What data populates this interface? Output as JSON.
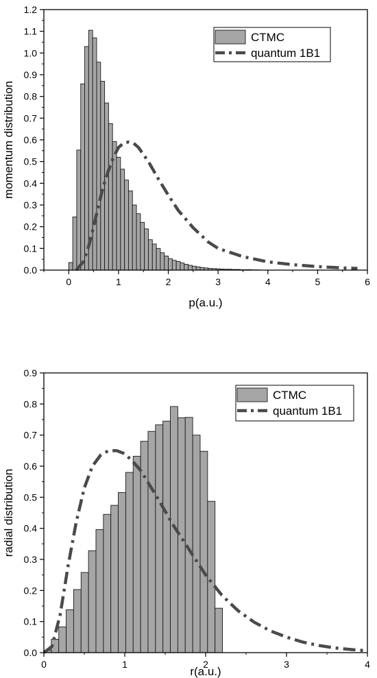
{
  "colors": {
    "bar_fill": "#a6a6a6",
    "bar_stroke": "#1a1a1a",
    "curve": "#4a4a4a",
    "axis": "#000000"
  },
  "chart_data": [
    {
      "type": "bar",
      "xlabel": "p(a.u.)",
      "ylabel": "momentum distribution",
      "xlim": [
        -0.5,
        6
      ],
      "ylim": [
        0,
        1.2
      ],
      "xticks": [
        "0",
        "1",
        "2",
        "3",
        "4",
        "5",
        "6"
      ],
      "yticks": [
        "0.0",
        "0.1",
        "0.2",
        "0.3",
        "0.4",
        "0.5",
        "0.6",
        "0.7",
        "0.8",
        "0.9",
        "1.0",
        "1.1",
        "1.2"
      ],
      "legend_position": "top-right",
      "bar_width": 0.08,
      "series": [
        {
          "name": "CTMC",
          "kind": "histogram",
          "x": [
            0.04,
            0.12,
            0.2,
            0.28,
            0.36,
            0.44,
            0.52,
            0.6,
            0.68,
            0.76,
            0.84,
            0.92,
            1.0,
            1.08,
            1.16,
            1.24,
            1.32,
            1.4,
            1.48,
            1.56,
            1.64,
            1.72,
            1.8,
            1.88,
            1.96,
            2.04,
            2.12,
            2.2,
            2.28,
            2.36,
            2.44,
            2.52,
            2.6,
            2.68,
            2.76,
            2.84,
            2.92,
            3.0,
            3.08,
            3.16,
            3.24,
            3.32,
            3.4,
            3.48,
            3.56,
            3.64,
            3.72,
            3.8
          ],
          "values": [
            0.035,
            0.245,
            0.553,
            0.858,
            1.03,
            1.105,
            1.07,
            0.958,
            0.87,
            0.77,
            0.675,
            0.592,
            0.52,
            0.465,
            0.415,
            0.365,
            0.3,
            0.26,
            0.22,
            0.19,
            0.14,
            0.12,
            0.1,
            0.08,
            0.065,
            0.053,
            0.045,
            0.04,
            0.033,
            0.027,
            0.022,
            0.018,
            0.015,
            0.012,
            0.01,
            0.008,
            0.007,
            0.006,
            0.005,
            0.004,
            0.004,
            0.003,
            0.003,
            0.002,
            0.002,
            0.002,
            0.001,
            0.001
          ]
        },
        {
          "name": "quantum 1B1",
          "kind": "line",
          "style": "dash-dot",
          "x": [
            0.15,
            0.3,
            0.4,
            0.5,
            0.6,
            0.7,
            0.8,
            0.9,
            1.0,
            1.1,
            1.2,
            1.3,
            1.4,
            1.6,
            1.8,
            2.0,
            2.2,
            2.5,
            2.8,
            3.0,
            3.5,
            4.0,
            4.5,
            5.0,
            5.5,
            5.8
          ],
          "values": [
            0.0,
            0.04,
            0.11,
            0.2,
            0.3,
            0.39,
            0.46,
            0.52,
            0.565,
            0.585,
            0.59,
            0.585,
            0.565,
            0.5,
            0.42,
            0.345,
            0.275,
            0.195,
            0.13,
            0.1,
            0.062,
            0.038,
            0.025,
            0.016,
            0.01,
            0.008
          ]
        }
      ]
    },
    {
      "type": "bar",
      "xlabel": "r(a.u.)",
      "ylabel": "radial distribution",
      "xlim": [
        0,
        4
      ],
      "ylim": [
        0,
        0.9
      ],
      "xticks": [
        "0",
        "1",
        "2",
        "3",
        "4"
      ],
      "yticks": [
        "0.0",
        "0.1",
        "0.2",
        "0.3",
        "0.4",
        "0.5",
        "0.6",
        "0.7",
        "0.8",
        "0.9"
      ],
      "legend_position": "top-right",
      "bar_width": 0.092,
      "series": [
        {
          "name": "CTMC",
          "kind": "histogram",
          "x": [
            0.046,
            0.138,
            0.23,
            0.322,
            0.414,
            0.506,
            0.598,
            0.69,
            0.782,
            0.874,
            0.966,
            1.058,
            1.15,
            1.242,
            1.334,
            1.426,
            1.518,
            1.61,
            1.702,
            1.794,
            1.886,
            1.978,
            2.07,
            2.162
          ],
          "values": [
            0.008,
            0.043,
            0.083,
            0.138,
            0.203,
            0.258,
            0.328,
            0.396,
            0.445,
            0.474,
            0.515,
            0.58,
            0.632,
            0.68,
            0.712,
            0.733,
            0.745,
            0.792,
            0.756,
            0.757,
            0.7,
            0.648,
            0.487,
            0.143
          ]
        },
        {
          "name": "quantum 1B1",
          "kind": "line",
          "style": "dash-dot",
          "x": [
            0.0,
            0.1,
            0.2,
            0.3,
            0.4,
            0.5,
            0.6,
            0.7,
            0.8,
            0.9,
            1.0,
            1.1,
            1.2,
            1.4,
            1.6,
            1.8,
            2.0,
            2.2,
            2.4,
            2.6,
            2.8,
            3.0,
            3.2,
            3.4,
            3.6,
            3.8,
            4.0
          ],
          "values": [
            0.0,
            0.02,
            0.12,
            0.28,
            0.42,
            0.53,
            0.6,
            0.635,
            0.65,
            0.65,
            0.64,
            0.615,
            0.585,
            0.5,
            0.41,
            0.33,
            0.25,
            0.185,
            0.135,
            0.098,
            0.07,
            0.05,
            0.034,
            0.023,
            0.015,
            0.01,
            0.006
          ]
        }
      ]
    }
  ]
}
